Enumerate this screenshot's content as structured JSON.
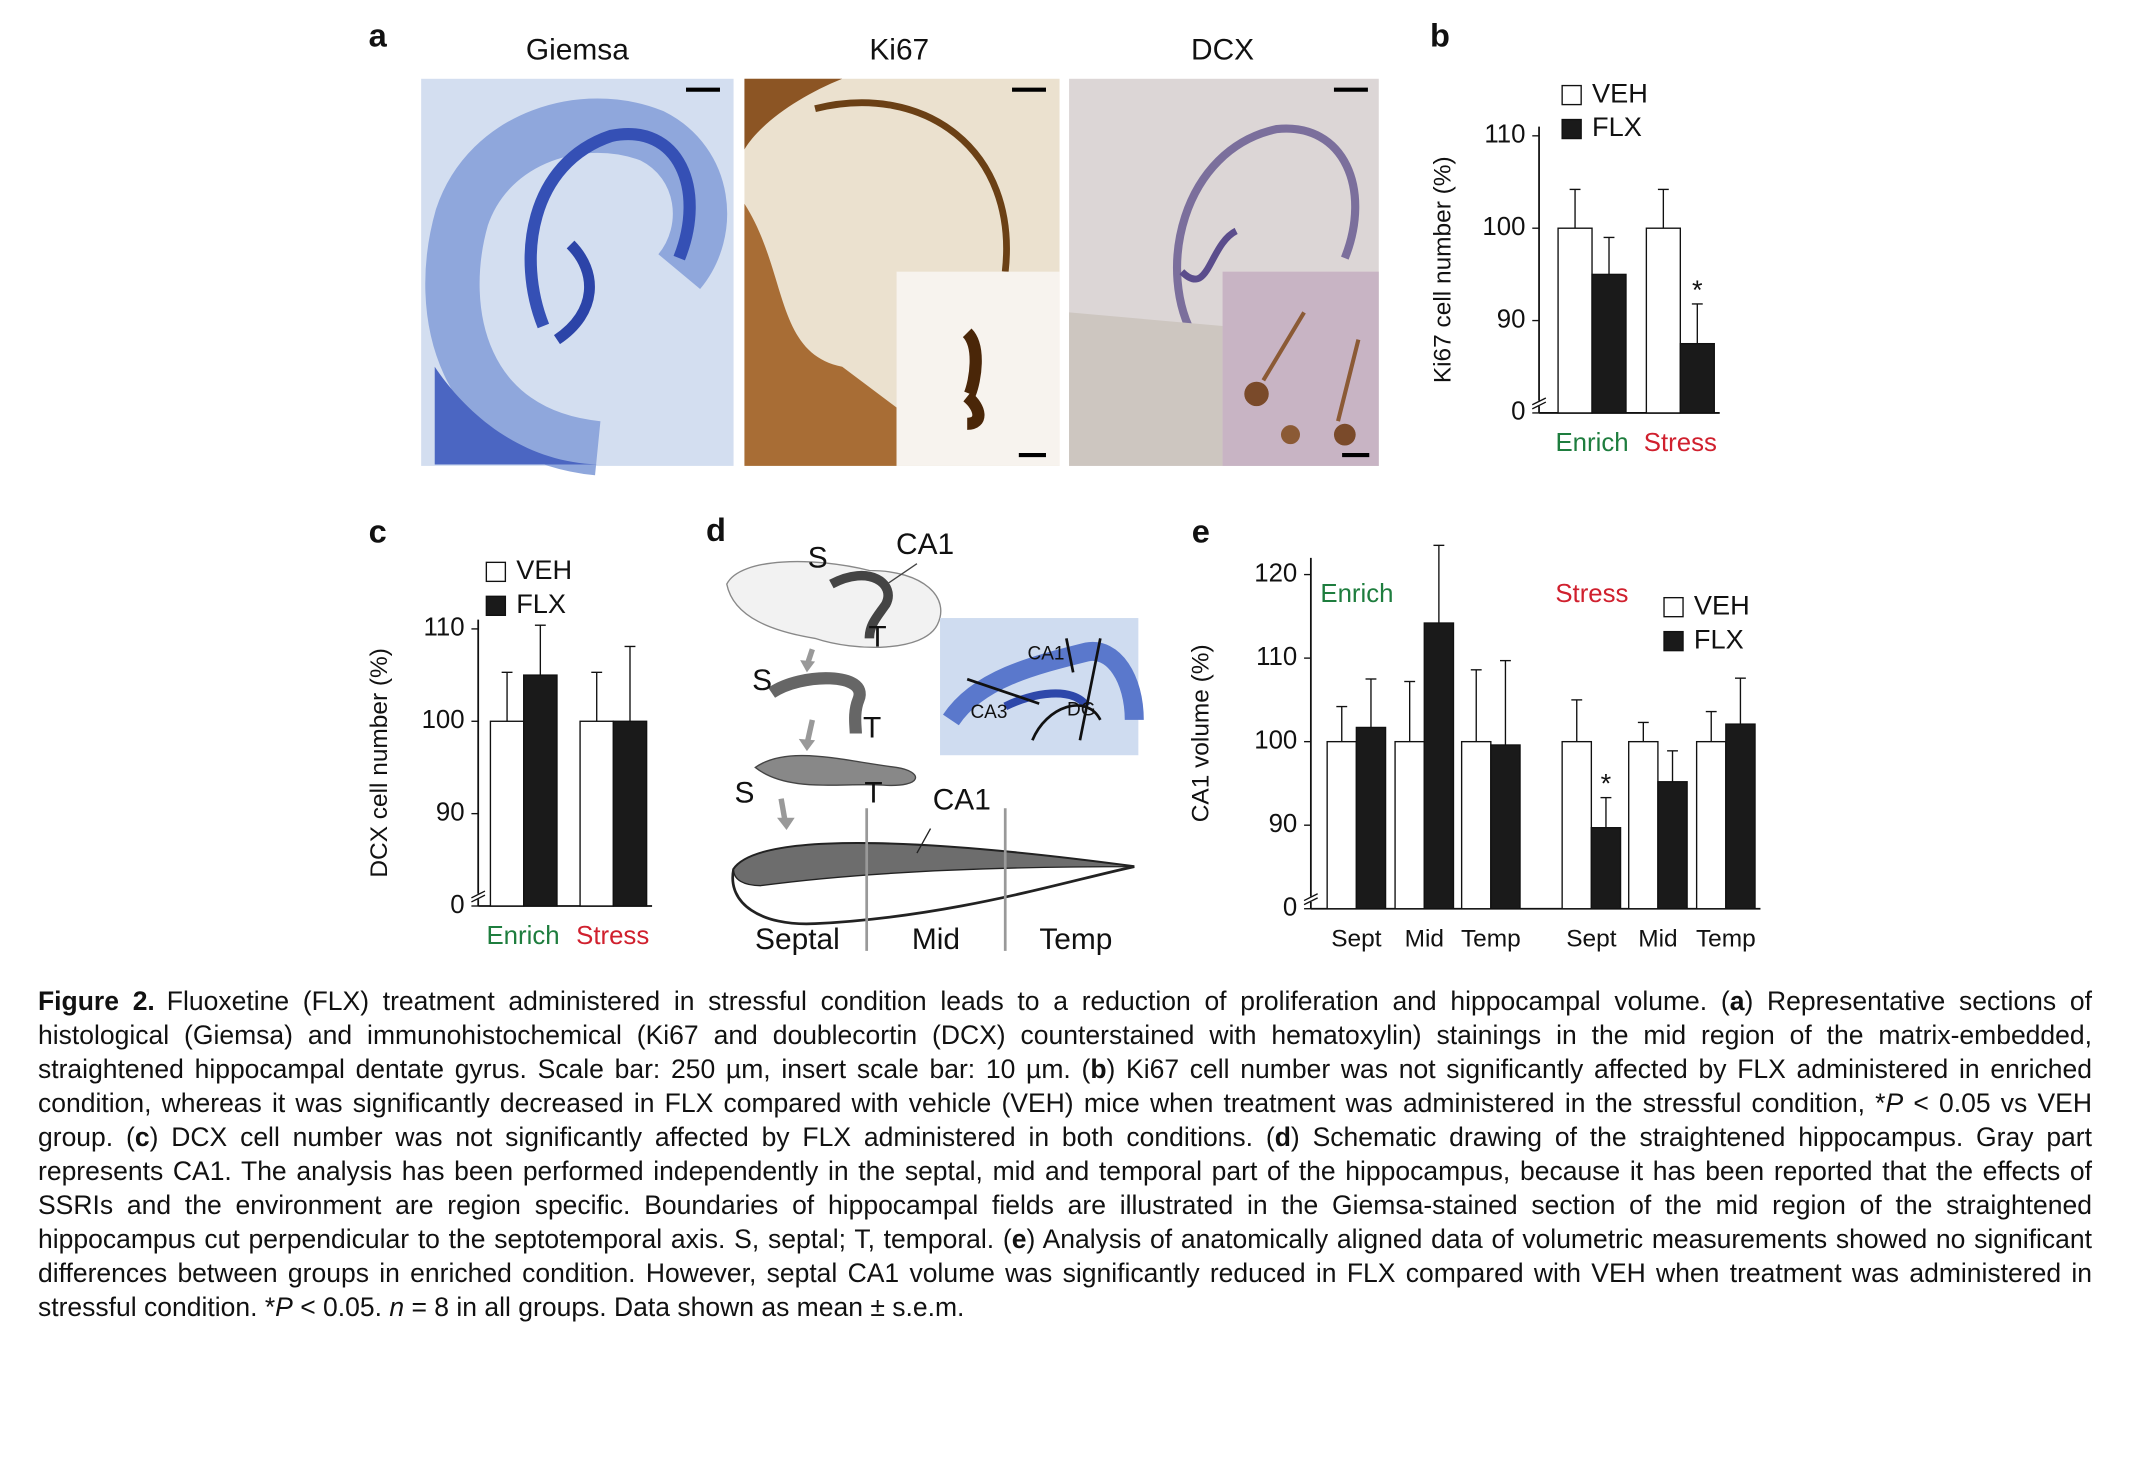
{
  "panel_a": {
    "label": "a",
    "titles": [
      "Giemsa",
      "Ki67",
      "DCX"
    ]
  },
  "chart_data": [
    {
      "type": "bar",
      "label": "b",
      "ylabel": "Ki67 cell number (%)",
      "groups": [
        {
          "name": "Enrich",
          "color": "#1e7d3e"
        },
        {
          "name": "Stress",
          "color": "#d0202e"
        }
      ],
      "series": [
        {
          "name": "VEH",
          "color": "#ffffff",
          "values": [
            100,
            100
          ],
          "errors": [
            4.2,
            4.2
          ]
        },
        {
          "name": "FLX",
          "color": "#1a1a1a",
          "values": [
            95,
            87.5
          ],
          "errors": [
            4,
            4.3
          ],
          "annotations": [
            null,
            "*"
          ]
        }
      ],
      "ylim": [
        0,
        111
      ],
      "yticks": [
        0,
        90,
        100,
        110
      ],
      "y_break": [
        0,
        80
      ]
    },
    {
      "type": "bar",
      "label": "c",
      "ylabel": "DCX cell number (%)",
      "groups": [
        {
          "name": "Enrich",
          "color": "#1e7d3e"
        },
        {
          "name": "Stress",
          "color": "#d0202e"
        }
      ],
      "series": [
        {
          "name": "VEH",
          "color": "#ffffff",
          "values": [
            100,
            100
          ],
          "errors": [
            5.3,
            5.3
          ]
        },
        {
          "name": "FLX",
          "color": "#1a1a1a",
          "values": [
            105,
            100
          ],
          "errors": [
            5.4,
            8.1
          ]
        }
      ],
      "ylim": [
        0,
        111
      ],
      "yticks": [
        0,
        90,
        100,
        110
      ],
      "y_break": [
        0,
        80
      ]
    },
    {
      "type": "bar",
      "label": "e",
      "ylabel": "CA1 volume (%)",
      "categories": [
        "Sept",
        "Mid",
        "Temp",
        "Sept",
        "Mid",
        "Temp"
      ],
      "groups": [
        {
          "name": "Enrich",
          "color": "#1e7d3e"
        },
        {
          "name": "Stress",
          "color": "#d0202e"
        }
      ],
      "series": [
        {
          "name": "VEH",
          "color": "#ffffff",
          "values": [
            100,
            100,
            100,
            100,
            100,
            100
          ],
          "errors": [
            4.2,
            7.2,
            8.6,
            5,
            2.3,
            3.6
          ]
        },
        {
          "name": "FLX",
          "color": "#1a1a1a",
          "values": [
            101.7,
            114.2,
            99.6,
            89.7,
            95.2,
            102.1
          ],
          "errors": [
            5.8,
            9.3,
            10.1,
            3.6,
            3.7,
            5.5
          ],
          "annotations": [
            null,
            null,
            null,
            "*",
            null,
            null
          ]
        }
      ],
      "ylim": [
        0,
        122
      ],
      "yticks": [
        0,
        90,
        100,
        110,
        120
      ],
      "y_break": [
        0,
        80
      ]
    }
  ],
  "diagram": {
    "label": "d",
    "texts": [
      "S",
      "CA1",
      "T",
      "S",
      "T",
      "S",
      "T",
      "CA1",
      "CA1",
      "CA3",
      "DG",
      "Septal",
      "Mid",
      "Temp"
    ]
  },
  "caption": [
    "Figure 2.",
    "Fluoxetine (FLX) treatment administered in stressful condition leads to a reduction of proliferation and hippocampal volume. (",
    "a",
    ") Representative sections of histological (Giemsa) and immunohistochemical (Ki67 and doublecortin (DCX) counterstained with hematoxylin) stainings in the mid region of the matrix-embedded, straightened hippocampal dentate gyrus. Scale bar: 250 µm, insert scale bar: 10 µm. (",
    "b",
    ") Ki67 cell number was not significantly affected by FLX administered in enriched condition, whereas it was significantly decreased in FLX compared with vehicle (VEH) mice when treatment was administered in the stressful condition, *",
    "P",
    " < 0.05 vs VEH group. (",
    "c",
    ") DCX cell number was not significantly affected by FLX administered in both conditions. (",
    "d",
    ") Schematic drawing of the straightened hippocampus. Gray part represents CA1. The analysis has been performed independently in the septal, mid and temporal part of the hippocampus, because it has been reported that the effects of SSRIs and the environment are region specific. Boundaries of hippocampal fields are illustrated in the Giemsa-stained section of the mid region of the straightened hippocampus cut perpendicular to the septotemporal axis. S, septal; T, temporal. (",
    "e",
    ") Analysis of anatomically aligned data of volumetric measurements showed no significant differences between groups in enriched condition. However, septal CA1 volume was significantly reduced in FLX compared with VEH when treatment was administered in stressful condition. *",
    "P",
    " < 0.05. ",
    "n",
    " = 8 in all groups. Data shown as mean ± s.e.m."
  ]
}
